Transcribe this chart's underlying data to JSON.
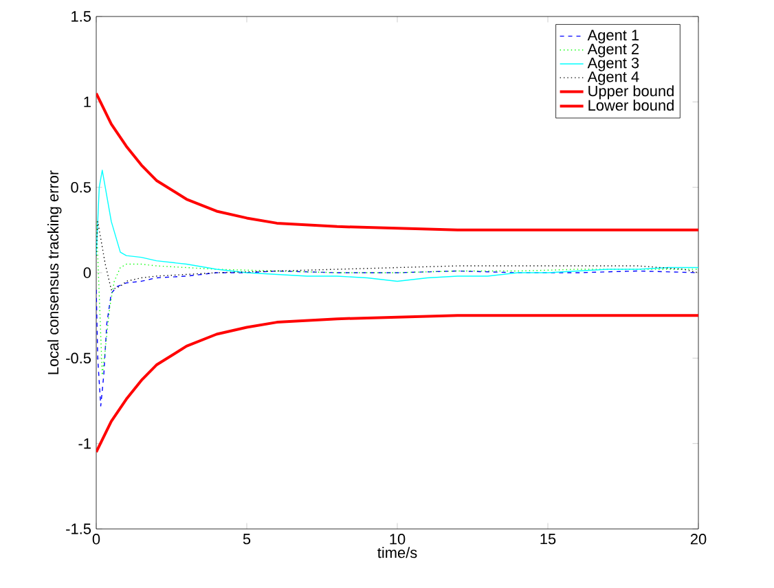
{
  "chart_data": {
    "type": "line",
    "xlabel": "time/s",
    "ylabel": "Local consensus tracking error",
    "xlim": [
      0,
      20
    ],
    "ylim": [
      -1.5,
      1.5
    ],
    "xticks": [
      0,
      5,
      10,
      15,
      20
    ],
    "yticks": [
      -1.5,
      -1,
      -0.5,
      0,
      0.5,
      1,
      1.5
    ],
    "grid": false,
    "legend": "top right",
    "series": [
      {
        "name": "Agent 1",
        "color": "#0000ff",
        "line_style": "dashed",
        "x": [
          0,
          0.05,
          0.15,
          0.25,
          0.35,
          0.5,
          0.7,
          1,
          1.5,
          2,
          3,
          4,
          5,
          6,
          8,
          10,
          12,
          14,
          16,
          18,
          20
        ],
        "values": [
          -0.1,
          -0.5,
          -0.78,
          -0.6,
          -0.3,
          -0.12,
          -0.08,
          -0.06,
          -0.05,
          -0.03,
          -0.02,
          0,
          0,
          0.01,
          0,
          0,
          0.01,
          0,
          0,
          0.01,
          0
        ]
      },
      {
        "name": "Agent 2",
        "color": "#00ff00",
        "line_style": "dotted",
        "x": [
          0,
          0.05,
          0.2,
          0.3,
          0.45,
          0.6,
          0.8,
          1,
          1.5,
          2,
          3,
          4,
          6,
          8,
          10,
          12,
          14,
          16,
          18,
          20
        ],
        "values": [
          0.3,
          0.1,
          -0.6,
          -0.45,
          -0.2,
          -0.05,
          0.03,
          0.05,
          0.05,
          0.04,
          0.03,
          0.02,
          0.01,
          0,
          0,
          0.01,
          0.01,
          0.02,
          0.02,
          0.02
        ]
      },
      {
        "name": "Agent 3",
        "color": "#00ffff",
        "line_style": "solid",
        "x": [
          0,
          0.1,
          0.2,
          0.3,
          0.5,
          0.8,
          1,
          1.5,
          2,
          3,
          4,
          5,
          6,
          7,
          8,
          9,
          10,
          11,
          12,
          13,
          14,
          15,
          16,
          17,
          18,
          19,
          20
        ],
        "values": [
          0.1,
          0.5,
          0.6,
          0.5,
          0.3,
          0.12,
          0.1,
          0.09,
          0.07,
          0.05,
          0.02,
          0,
          -0.01,
          -0.02,
          -0.02,
          -0.03,
          -0.05,
          -0.03,
          -0.02,
          -0.02,
          0,
          0,
          0.01,
          0.02,
          0.02,
          0.03,
          0.03
        ]
      },
      {
        "name": "Agent 4",
        "color": "#000000",
        "line_style": "dotted",
        "x": [
          0,
          0.05,
          0.15,
          0.3,
          0.5,
          0.8,
          1,
          1.5,
          2,
          3,
          4,
          6,
          8,
          10,
          12,
          14,
          16,
          18,
          19.5,
          20
        ],
        "values": [
          0.1,
          0.3,
          0.2,
          0.05,
          -0.1,
          -0.08,
          -0.05,
          -0.03,
          -0.02,
          -0.01,
          0,
          0.01,
          0.02,
          0.03,
          0.04,
          0.04,
          0.04,
          0.04,
          0.02,
          0
        ]
      },
      {
        "name": "Upper bound",
        "color": "#ff0000",
        "line_style": "solid",
        "x": [
          0,
          0.5,
          1,
          1.5,
          2,
          3,
          4,
          5,
          6,
          8,
          10,
          12,
          15,
          20
        ],
        "values": [
          1.05,
          0.87,
          0.74,
          0.63,
          0.54,
          0.43,
          0.36,
          0.32,
          0.29,
          0.27,
          0.26,
          0.25,
          0.25,
          0.25
        ]
      },
      {
        "name": "Lower bound",
        "color": "#ff0000",
        "line_style": "solid",
        "x": [
          0,
          0.5,
          1,
          1.5,
          2,
          3,
          4,
          5,
          6,
          8,
          10,
          12,
          15,
          20
        ],
        "values": [
          -1.05,
          -0.87,
          -0.74,
          -0.63,
          -0.54,
          -0.43,
          -0.36,
          -0.32,
          -0.29,
          -0.27,
          -0.26,
          -0.25,
          -0.25,
          -0.25
        ]
      }
    ]
  }
}
